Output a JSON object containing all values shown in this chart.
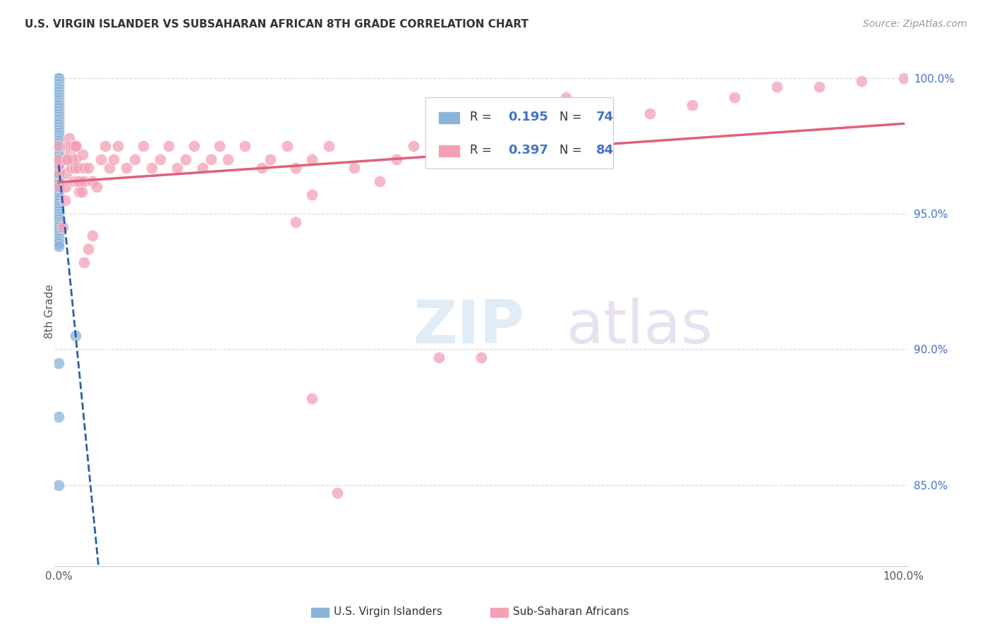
{
  "title": "U.S. VIRGIN ISLANDER VS SUBSAHARAN AFRICAN 8TH GRADE CORRELATION CHART",
  "source": "Source: ZipAtlas.com",
  "ylabel": "8th Grade",
  "ytick_labels": [
    "85.0%",
    "90.0%",
    "95.0%",
    "100.0%"
  ],
  "ytick_values": [
    0.85,
    0.9,
    0.95,
    1.0
  ],
  "legend_label1": "U.S. Virgin Islanders",
  "legend_label2": "Sub-Saharan Africans",
  "color_blue": "#8ab4d8",
  "color_pink": "#f4a0b5",
  "color_blue_line": "#2a5fa8",
  "color_pink_line": "#e0607a",
  "color_blue_text": "#4472c4",
  "background": "#ffffff",
  "blue_x": [
    0.0,
    0.0,
    0.0,
    0.0,
    0.0,
    0.0,
    0.0,
    0.0,
    0.0,
    0.0,
    0.0,
    0.0,
    0.0,
    0.0,
    0.0,
    0.0,
    0.0,
    0.0,
    0.0,
    0.0,
    0.0,
    0.0,
    0.0,
    0.0,
    0.0,
    0.0,
    0.0,
    0.0,
    0.0,
    0.0,
    0.0,
    0.0,
    0.0,
    0.0,
    0.0,
    0.0,
    0.0,
    0.0,
    0.0,
    0.0,
    0.0,
    0.0,
    0.0,
    0.0,
    0.0,
    0.0,
    0.0,
    0.0,
    0.0,
    0.0,
    0.0,
    0.0,
    0.0,
    0.0,
    0.0,
    0.0,
    0.0,
    0.0,
    0.0,
    0.0,
    0.0,
    0.0,
    0.0,
    0.0,
    0.0,
    0.0,
    0.0,
    0.0,
    0.0,
    0.0,
    0.02,
    0.0,
    0.0,
    0.0
  ],
  "blue_y": [
    1.0,
    1.0,
    1.0,
    1.0,
    1.0,
    1.0,
    1.0,
    1.0,
    0.999,
    0.998,
    0.997,
    0.996,
    0.995,
    0.994,
    0.993,
    0.992,
    0.991,
    0.99,
    0.989,
    0.988,
    0.987,
    0.986,
    0.985,
    0.984,
    0.983,
    0.982,
    0.981,
    0.98,
    0.979,
    0.978,
    0.977,
    0.976,
    0.975,
    0.974,
    0.973,
    0.972,
    0.971,
    0.97,
    0.969,
    0.968,
    0.967,
    0.966,
    0.965,
    0.964,
    0.963,
    0.962,
    0.961,
    0.96,
    0.959,
    0.958,
    0.957,
    0.956,
    0.955,
    0.954,
    0.953,
    0.952,
    0.951,
    0.95,
    0.949,
    0.948,
    0.947,
    0.946,
    0.945,
    0.944,
    0.943,
    0.942,
    0.941,
    0.94,
    0.939,
    0.938,
    0.905,
    0.895,
    0.875,
    0.85
  ],
  "pink_x": [
    0.0,
    0.0,
    0.0,
    0.0,
    0.0,
    0.005,
    0.007,
    0.008,
    0.009,
    0.01,
    0.011,
    0.012,
    0.013,
    0.014,
    0.015,
    0.016,
    0.017,
    0.018,
    0.019,
    0.02,
    0.021,
    0.022,
    0.023,
    0.024,
    0.025,
    0.027,
    0.028,
    0.03,
    0.03,
    0.035,
    0.04,
    0.045,
    0.05,
    0.055,
    0.06,
    0.065,
    0.07,
    0.08,
    0.09,
    0.1,
    0.11,
    0.12,
    0.13,
    0.14,
    0.15,
    0.16,
    0.17,
    0.18,
    0.19,
    0.2,
    0.22,
    0.24,
    0.25,
    0.27,
    0.28,
    0.3,
    0.32,
    0.35,
    0.38,
    0.4,
    0.42,
    0.45,
    0.5,
    0.55,
    0.6,
    0.65,
    0.7,
    0.75,
    0.8,
    0.85,
    0.9,
    0.95,
    1.0,
    0.03,
    0.035,
    0.04,
    0.3,
    0.45,
    0.5,
    0.28,
    0.3,
    0.33,
    0.01,
    0.02
  ],
  "pink_y": [
    0.96,
    0.965,
    0.968,
    0.97,
    0.975,
    0.945,
    0.955,
    0.96,
    0.965,
    0.97,
    0.975,
    0.978,
    0.972,
    0.975,
    0.967,
    0.97,
    0.975,
    0.962,
    0.967,
    0.97,
    0.975,
    0.962,
    0.967,
    0.958,
    0.962,
    0.958,
    0.972,
    0.967,
    0.962,
    0.967,
    0.962,
    0.96,
    0.97,
    0.975,
    0.967,
    0.97,
    0.975,
    0.967,
    0.97,
    0.975,
    0.967,
    0.97,
    0.975,
    0.967,
    0.97,
    0.975,
    0.967,
    0.97,
    0.975,
    0.97,
    0.975,
    0.967,
    0.97,
    0.975,
    0.967,
    0.97,
    0.975,
    0.967,
    0.962,
    0.97,
    0.975,
    0.98,
    0.985,
    0.99,
    0.993,
    0.99,
    0.987,
    0.99,
    0.993,
    0.997,
    0.997,
    0.999,
    1.0,
    0.932,
    0.937,
    0.942,
    0.957,
    0.897,
    0.897,
    0.947,
    0.882,
    0.847,
    0.97,
    0.975
  ]
}
